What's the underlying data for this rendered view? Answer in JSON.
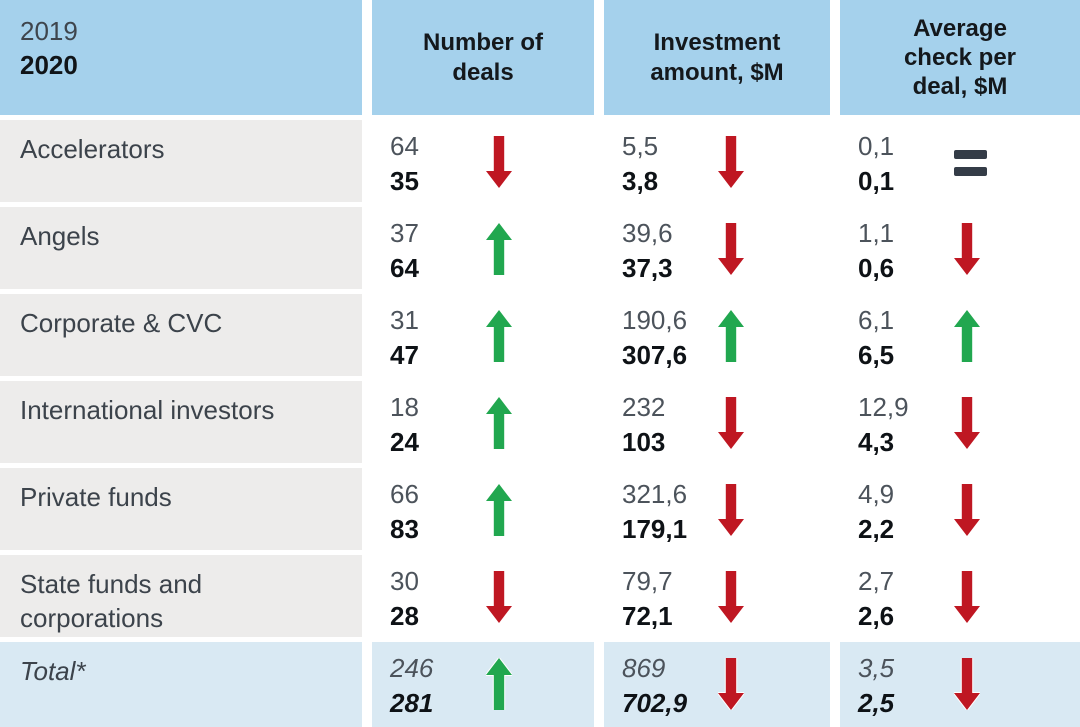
{
  "chart_data": {
    "type": "table",
    "years": [
      "2019",
      "2020"
    ],
    "columns": [
      "Number of deals",
      "Investment amount, $M",
      "Average check per deal, $M"
    ],
    "rows": [
      {
        "label": "Accelerators",
        "is_total": false,
        "cells": [
          {
            "prev": "64",
            "curr": "35",
            "trend": "down"
          },
          {
            "prev": "5,5",
            "curr": "3,8",
            "trend": "down"
          },
          {
            "prev": "0,1",
            "curr": "0,1",
            "trend": "equal"
          }
        ]
      },
      {
        "label": "Angels",
        "is_total": false,
        "cells": [
          {
            "prev": "37",
            "curr": "64",
            "trend": "up"
          },
          {
            "prev": "39,6",
            "curr": "37,3",
            "trend": "down"
          },
          {
            "prev": "1,1",
            "curr": "0,6",
            "trend": "down"
          }
        ]
      },
      {
        "label": "Corporate & CVC",
        "is_total": false,
        "cells": [
          {
            "prev": "31",
            "curr": "47",
            "trend": "up"
          },
          {
            "prev": "190,6",
            "curr": "307,6",
            "trend": "up"
          },
          {
            "prev": "6,1",
            "curr": "6,5",
            "trend": "up"
          }
        ]
      },
      {
        "label": "International investors",
        "is_total": false,
        "cells": [
          {
            "prev": "18",
            "curr": "24",
            "trend": "up"
          },
          {
            "prev": "232",
            "curr": "103",
            "trend": "down"
          },
          {
            "prev": "12,9",
            "curr": "4,3",
            "trend": "down"
          }
        ]
      },
      {
        "label": "Private funds",
        "is_total": false,
        "cells": [
          {
            "prev": "66",
            "curr": "83",
            "trend": "up"
          },
          {
            "prev": "321,6",
            "curr": "179,1",
            "trend": "down"
          },
          {
            "prev": "4,9",
            "curr": "2,2",
            "trend": "down"
          }
        ]
      },
      {
        "label": "State funds and corporations",
        "is_total": false,
        "cells": [
          {
            "prev": "30",
            "curr": "28",
            "trend": "down"
          },
          {
            "prev": "79,7",
            "curr": "72,1",
            "trend": "down"
          },
          {
            "prev": "2,7",
            "curr": "2,6",
            "trend": "down"
          }
        ]
      },
      {
        "label": "Total*",
        "is_total": true,
        "cells": [
          {
            "prev": "246",
            "curr": "281",
            "trend": "up"
          },
          {
            "prev": "869",
            "curr": "702,9",
            "trend": "down"
          },
          {
            "prev": "3,5",
            "curr": "2,5",
            "trend": "down"
          }
        ]
      }
    ]
  },
  "colors": {
    "header_bg": "#a5d1ec",
    "total_bg": "#d9e9f3",
    "label_bg": "#edeceb",
    "up": "#21a74f",
    "down": "#bf1722",
    "equal": "#343c47"
  }
}
